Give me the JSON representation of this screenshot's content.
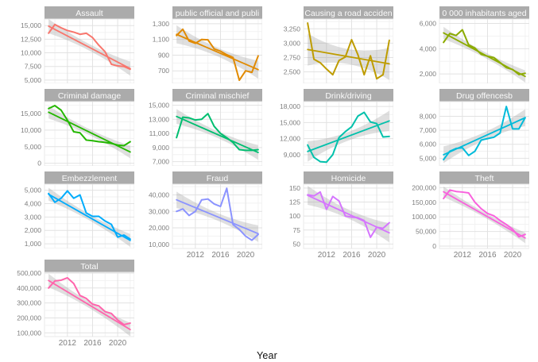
{
  "figure": {
    "xlabel": "Year",
    "background": "#FFFFFF",
    "strip_bg": "#ABABAB",
    "strip_text_color": "#FAFAFA",
    "grid_major": "#E2E2E2",
    "grid_minor": "#F2F2F2",
    "panel_bg": "#FFFFFF",
    "panel_border": "#E8E8E8",
    "ribbon_color": "#9C9C9C",
    "ribbon_opacity": 0.32,
    "axis_text_color": "#7E7E7E"
  },
  "chart_data": {
    "type": "line",
    "xlabel": "Year",
    "x_years": [
      2009,
      2010,
      2011,
      2012,
      2013,
      2014,
      2015,
      2016,
      2017,
      2018,
      2019,
      2020,
      2021,
      2022
    ],
    "x_range": [
      2008.35,
      2022.65
    ],
    "x_ticks": [
      2012,
      2016,
      2020
    ],
    "x_tick_labels": [
      "2012",
      "2016",
      "2020"
    ],
    "x_minor": [
      2010,
      2014,
      2018,
      2022
    ],
    "grid": true,
    "legend": "none",
    "facets_note": "4x4 facet grid, 13 panels, smoothed linear trend with gray confidence band per panel",
    "panels": [
      {
        "key": "assault",
        "title": "Assault",
        "color": "#F8766D",
        "row": 1,
        "col": 1,
        "show_x": false,
        "ylim": [
          4400,
          16200
        ],
        "yticks": [
          5000,
          7500,
          10000,
          12500,
          15000
        ],
        "ytick_labels": [
          "5,000",
          "7,500",
          "10,000",
          "12,500",
          "15,000"
        ],
        "values": [
          13600,
          15200,
          14600,
          14100,
          13800,
          13400,
          13600,
          12800,
          11400,
          10200,
          7900,
          7600,
          7500,
          7000
        ],
        "trend": [
          14900,
          7100
        ],
        "band": [
          600,
          1300
        ]
      },
      {
        "key": "public_official",
        "title": "public official and publi",
        "color": "#E18A00",
        "row": 1,
        "col": 2,
        "show_x": false,
        "ylim": [
          540,
          1360
        ],
        "yticks": [
          700,
          900,
          1100,
          1300
        ],
        "ytick_labels": [
          "700",
          "900",
          "1,100",
          "1,300"
        ],
        "values": [
          1150,
          1230,
          1080,
          1050,
          1100,
          1095,
          980,
          950,
          905,
          870,
          580,
          700,
          680,
          890
        ],
        "trend": [
          1165,
          715
        ],
        "band": [
          55,
          115
        ]
      },
      {
        "key": "road_accident",
        "title": "Causing a road acciden",
        "color": "#BE9C00",
        "row": 1,
        "col": 3,
        "show_x": false,
        "ylim": [
          2300,
          3420
        ],
        "yticks": [
          2500,
          2750,
          3000,
          3250
        ],
        "ytick_labels": [
          "2,500",
          "2,750",
          "3,000",
          "3,250"
        ],
        "values": [
          3350,
          2720,
          2660,
          2550,
          2450,
          2700,
          2760,
          3060,
          2800,
          2450,
          2780,
          2380,
          2450,
          3050
        ],
        "trend": [
          2890,
          2640
        ],
        "band": [
          130,
          280
        ]
      },
      {
        "key": "inhabitants",
        "title": "0 000 inhabitants aged",
        "color": "#8CAB00",
        "row": 1,
        "col": 4,
        "show_x": false,
        "ylim": [
          1250,
          6350
        ],
        "yticks": [
          2000,
          4000,
          6000
        ],
        "ytick_labels": [
          "2,000",
          "4,000",
          "6,000"
        ],
        "values": [
          4500,
          5200,
          5050,
          5500,
          4300,
          4050,
          3550,
          3400,
          3300,
          2900,
          2500,
          2350,
          1950,
          2050
        ],
        "trend": [
          5250,
          1800
        ],
        "band": [
          230,
          480
        ]
      },
      {
        "key": "criminal_damage",
        "title": "Criminal damage",
        "color": "#24B700",
        "row": 2,
        "col": 1,
        "show_x": false,
        "ylim": [
          -800,
          18600
        ],
        "yticks": [
          0,
          5000,
          10000,
          15000
        ],
        "ytick_labels": [
          "0",
          "5,000",
          "10,000",
          "15,000"
        ],
        "values": [
          16500,
          17400,
          16000,
          13000,
          9500,
          9200,
          7000,
          6800,
          6500,
          6300,
          6000,
          5500,
          5300,
          6500
        ],
        "trend": [
          15400,
          3400
        ],
        "band": [
          900,
          1900
        ]
      },
      {
        "key": "criminal_mischief",
        "title": "Criminal mischief",
        "color": "#00BE70",
        "row": 2,
        "col": 2,
        "show_x": false,
        "ylim": [
          6400,
          15500
        ],
        "yticks": [
          7000,
          9000,
          11000,
          13000,
          15000
        ],
        "ytick_labels": [
          "7,000",
          "9,000",
          "11,000",
          "13,000",
          "15,000"
        ],
        "values": [
          10400,
          13300,
          13200,
          12900,
          13000,
          13800,
          12000,
          11000,
          10400,
          9700,
          8700,
          8600,
          8600,
          8700
        ],
        "trend": [
          13400,
          8300
        ],
        "band": [
          480,
          1050
        ]
      },
      {
        "key": "drink_driving",
        "title": "Drink/driving",
        "color": "#00C1AB",
        "row": 2,
        "col": 3,
        "show_x": false,
        "ylim": [
          6900,
          18900
        ],
        "yticks": [
          9000,
          12000,
          15000,
          18000
        ],
        "ytick_labels": [
          "9,000",
          "12,000",
          "15,000",
          "18,000"
        ],
        "values": [
          10800,
          8500,
          7700,
          7600,
          9000,
          12200,
          13300,
          14200,
          16200,
          16900,
          15100,
          14800,
          12300,
          12400
        ],
        "trend": [
          9600,
          15300
        ],
        "band": [
          800,
          1900
        ]
      },
      {
        "key": "drug_offences",
        "title": "Drug offencesb",
        "color": "#00BBDA",
        "row": 2,
        "col": 4,
        "show_x": false,
        "ylim": [
          4450,
          9050
        ],
        "yticks": [
          5000,
          6000,
          7000,
          8000
        ],
        "ytick_labels": [
          "5,000",
          "6,000",
          "7,000",
          "8,000"
        ],
        "values": [
          4900,
          5500,
          5700,
          5750,
          5200,
          5500,
          6300,
          6400,
          6500,
          6800,
          8700,
          7100,
          7100,
          7900
        ],
        "trend": [
          5250,
          7900
        ],
        "band": [
          280,
          600
        ]
      },
      {
        "key": "embezzlement",
        "title": "Embezzlement",
        "color": "#00ACFC",
        "row": 3,
        "col": 1,
        "show_x": false,
        "ylim": [
          650,
          5450
        ],
        "yticks": [
          1000,
          2000,
          3000,
          4000,
          5000
        ],
        "ytick_labels": [
          "1,000",
          "2,000",
          "3,000",
          "4,000",
          "5,000"
        ],
        "values": [
          4750,
          4100,
          4400,
          4950,
          4400,
          4650,
          3300,
          3050,
          3050,
          2700,
          2450,
          1500,
          1650,
          1350
        ],
        "trend": [
          4700,
          1250
        ],
        "band": [
          230,
          480
        ]
      },
      {
        "key": "fraud",
        "title": "Fraud",
        "color": "#8B93FF",
        "row": 3,
        "col": 2,
        "show_x": true,
        "ylim": [
          7500,
          46500
        ],
        "yticks": [
          10000,
          20000,
          30000,
          40000
        ],
        "ytick_labels": [
          "10,000",
          "20,000",
          "30,000",
          "40,000"
        ],
        "values": [
          30000,
          31500,
          27500,
          30000,
          37000,
          37500,
          34500,
          33000,
          44000,
          22000,
          19000,
          15000,
          12500,
          16000
        ],
        "trend": [
          37000,
          16500
        ],
        "band": [
          2300,
          5000
        ]
      },
      {
        "key": "homicide",
        "title": "Homicide",
        "color": "#D575FE",
        "row": 3,
        "col": 3,
        "show_x": true,
        "ylim": [
          42,
          157
        ],
        "yticks": [
          50,
          75,
          100,
          125,
          150
        ],
        "ytick_labels": [
          "50",
          "75",
          "100",
          "125",
          "150"
        ],
        "values": [
          138,
          136,
          143,
          112,
          135,
          127,
          100,
          98,
          97,
          92,
          62,
          80,
          78,
          88
        ],
        "trend": [
          137,
          70
        ],
        "band": [
          8,
          17
        ]
      },
      {
        "key": "theft",
        "title": "Theft",
        "color": "#F962DD",
        "row": 3,
        "col": 4,
        "show_x": true,
        "ylim": [
          -8000,
          212000
        ],
        "yticks": [
          0,
          50000,
          100000,
          150000,
          200000
        ],
        "ytick_labels": [
          "0",
          "50,000",
          "100,000",
          "150,000",
          "200,000"
        ],
        "values": [
          163000,
          192000,
          187000,
          185000,
          182000,
          150000,
          128000,
          112000,
          104000,
          88000,
          74000,
          58000,
          32000,
          40000
        ],
        "trend": [
          186000,
          28000
        ],
        "band": [
          8500,
          18000
        ]
      },
      {
        "key": "total",
        "title": "Total",
        "color": "#FF65AC",
        "row": 4,
        "col": 1,
        "show_x": true,
        "ylim": [
          75000,
          505000
        ],
        "yticks": [
          100000,
          200000,
          300000,
          400000,
          500000
        ],
        "ytick_labels": [
          "100,000",
          "200,000",
          "300,000",
          "400,000",
          "500,000"
        ],
        "values": [
          400000,
          447000,
          452000,
          468000,
          430000,
          350000,
          330000,
          292000,
          280000,
          242000,
          230000,
          186000,
          155000,
          165000
        ],
        "trend": [
          450000,
          122000
        ],
        "band": [
          21000,
          45000
        ]
      }
    ]
  }
}
